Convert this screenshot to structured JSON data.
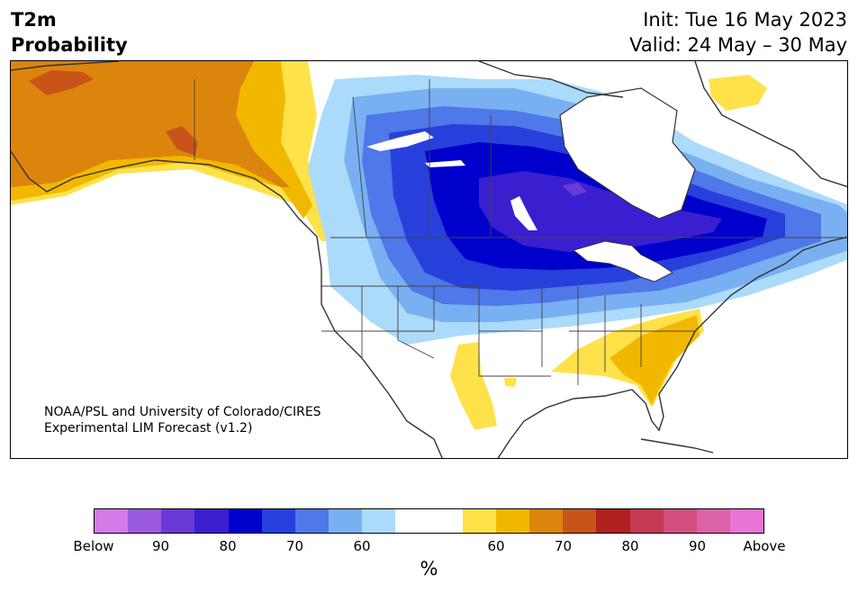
{
  "header": {
    "title_line1": "T2m",
    "title_line2": "Probability",
    "init_text": "Init: Tue 16 May 2023",
    "valid_text": "Valid: 24 May – 30 May"
  },
  "credit": {
    "line1": "NOAA/PSL and University of Colorado/CIRES",
    "line2": "Experimental LIM Forecast (v1.2)"
  },
  "colorbar": {
    "unit_label": "%",
    "colors": [
      "#d57ae8",
      "#9b59e0",
      "#6a39d6",
      "#3a1fd0",
      "#0000cd",
      "#2740dc",
      "#4f78e8",
      "#78b0f2",
      "#acdafb",
      "#ffffff",
      "#ffffff",
      "#ffe14a",
      "#f2b800",
      "#dc850d",
      "#c8541a",
      "#b02020",
      "#c43a52",
      "#d24e7e",
      "#dc62a8",
      "#e874d6"
    ],
    "tick_labels": [
      "Below",
      "90",
      "80",
      "70",
      "60",
      "60",
      "70",
      "80",
      "90",
      "Above"
    ]
  },
  "legend_meaning": {
    "cool_side": "Below",
    "warm_side": "Above"
  }
}
